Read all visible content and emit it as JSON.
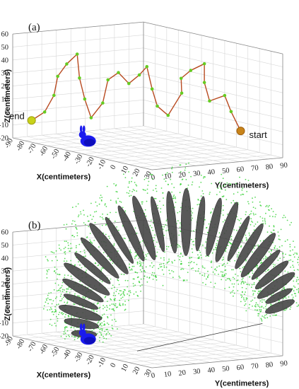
{
  "chart_data": [
    {
      "panel_label": "(a)",
      "type": "scatter",
      "xlabel": "X(centimeters)",
      "ylabel": "Y(centimeters)",
      "zlabel": "Z(centimeters)",
      "x_ticks": [
        -90,
        -80,
        -70,
        -60,
        -50,
        -40,
        -30,
        -20,
        -10,
        0,
        10,
        20,
        30
      ],
      "y_ticks": [
        0,
        10,
        20,
        30,
        40,
        50,
        60,
        70,
        80,
        90
      ],
      "z_ticks": [
        -20,
        -10,
        0,
        10,
        20,
        30,
        40,
        50,
        60
      ],
      "xlim": [
        -90,
        30
      ],
      "ylim": [
        0,
        90
      ],
      "zlim": [
        -20,
        60
      ],
      "grid": true,
      "annotations": [
        {
          "text": "start",
          "x": 0,
          "y": 85,
          "z": -5
        },
        {
          "text": "end",
          "x": -80,
          "y": 5,
          "z": -5
        }
      ],
      "series": [
        {
          "name": "trajectory",
          "color": "#b84a20",
          "marker_color": "#66cc22",
          "points": [
            {
              "x": 0,
              "y": 85,
              "z": -5
            },
            {
              "x": -2,
              "y": 80,
              "z": 10
            },
            {
              "x": -5,
              "y": 78,
              "z": 22
            },
            {
              "x": -8,
              "y": 70,
              "z": 18
            },
            {
              "x": -10,
              "y": 68,
              "z": 32
            },
            {
              "x": -15,
              "y": 72,
              "z": 45
            },
            {
              "x": -18,
              "y": 65,
              "z": 40
            },
            {
              "x": -20,
              "y": 60,
              "z": 34
            },
            {
              "x": -22,
              "y": 62,
              "z": 22
            },
            {
              "x": -25,
              "y": 55,
              "z": 5
            },
            {
              "x": -28,
              "y": 50,
              "z": 12
            },
            {
              "x": -30,
              "y": 48,
              "z": 25
            },
            {
              "x": -32,
              "y": 46,
              "z": 42
            },
            {
              "x": -36,
              "y": 44,
              "z": 35
            },
            {
              "x": -40,
              "y": 40,
              "z": 28
            },
            {
              "x": -44,
              "y": 36,
              "z": 36
            },
            {
              "x": -48,
              "y": 32,
              "z": 30
            },
            {
              "x": -50,
              "y": 30,
              "z": 12
            },
            {
              "x": -55,
              "y": 26,
              "z": 0
            },
            {
              "x": -58,
              "y": 24,
              "z": 14
            },
            {
              "x": -60,
              "y": 22,
              "z": 30
            },
            {
              "x": -62,
              "y": 22,
              "z": 48
            },
            {
              "x": -66,
              "y": 18,
              "z": 40
            },
            {
              "x": -70,
              "y": 15,
              "z": 30
            },
            {
              "x": -72,
              "y": 14,
              "z": 15
            },
            {
              "x": -75,
              "y": 10,
              "z": 2
            },
            {
              "x": -80,
              "y": 5,
              "z": -5
            }
          ]
        }
      ],
      "objects": [
        "blue bunny model"
      ]
    },
    {
      "panel_label": "(b)",
      "type": "scatter",
      "xlabel": "X(centimeters)",
      "ylabel": "Y(centimeters)",
      "zlabel": "Z(centimeters)",
      "x_ticks": [
        -90,
        -80,
        -70,
        -60,
        -50,
        -40,
        -30,
        -20,
        -10,
        0,
        10,
        20,
        30
      ],
      "y_ticks": [
        0,
        10,
        20,
        30,
        40,
        50,
        60,
        70,
        80,
        90
      ],
      "z_ticks": [
        -20,
        -10,
        0,
        10,
        20,
        30,
        40,
        50,
        60
      ],
      "xlim": [
        -90,
        30
      ],
      "ylim": [
        0,
        90
      ],
      "zlim": [
        -20,
        60
      ],
      "grid": true,
      "series": [
        {
          "name": "point cloud",
          "color": "#22cc22",
          "description_kind": "dense green scatter with dark ellipsoids"
        },
        {
          "name": "uncertainty ellipsoids",
          "color": "#3a3a3a",
          "count": 26
        }
      ],
      "objects": [
        "blue bunny model"
      ]
    }
  ]
}
